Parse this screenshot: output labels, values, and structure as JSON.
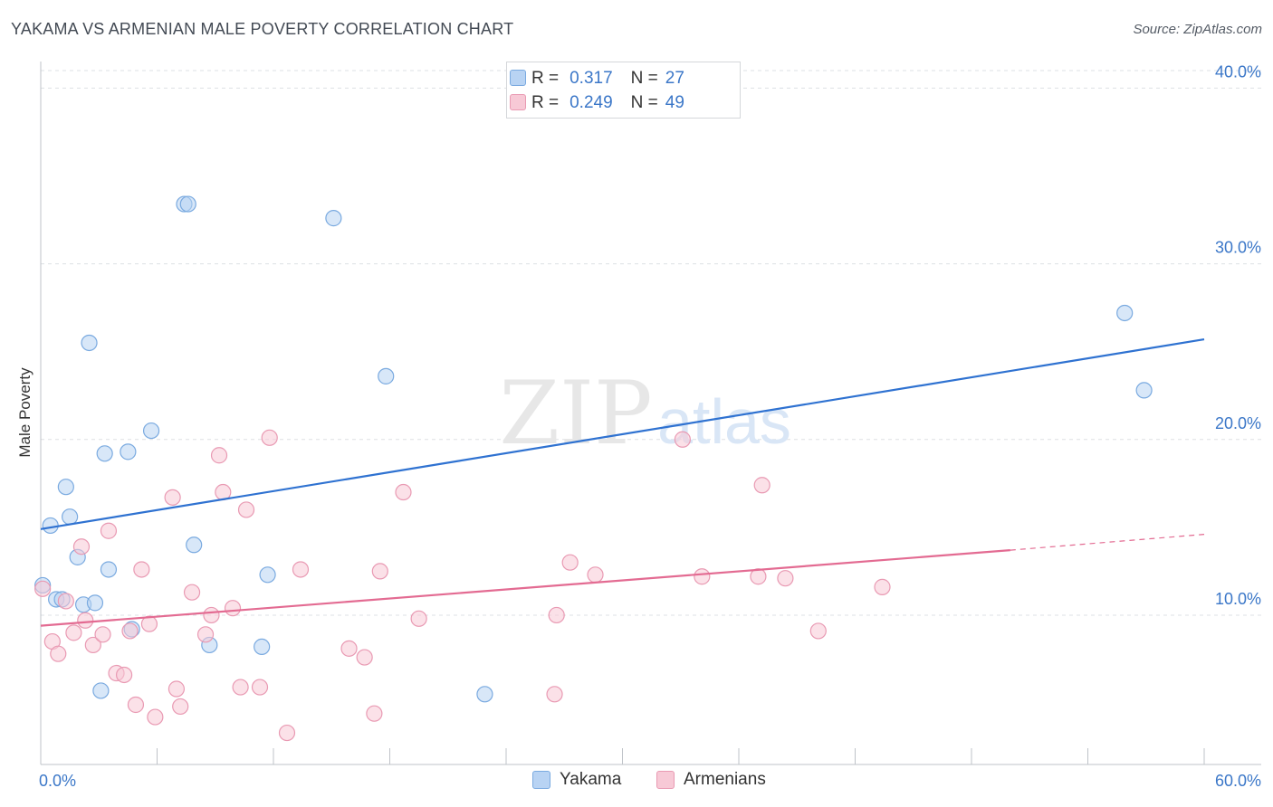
{
  "title": "YAKAMA VS ARMENIAN MALE POVERTY CORRELATION CHART",
  "source": "Source: ZipAtlas.com",
  "watermark": {
    "zip": "ZIP",
    "atlas": "atlas"
  },
  "colors": {
    "yakama_fill": "#b8d3f3",
    "yakama_stroke": "#7aaae0",
    "yakama_line": "#2f72d1",
    "armenian_fill": "#f7c9d6",
    "armenian_stroke": "#e99ab3",
    "armenian_line": "#e36b92",
    "tick_label": "#3b77c8",
    "grid": "#dde0e4"
  },
  "legend": {
    "rows": [
      {
        "r_label": "R =",
        "r_value": "0.317",
        "n_label": "N =",
        "n_value": "27"
      },
      {
        "r_label": "R =",
        "r_value": "0.249",
        "n_label": "N =",
        "n_value": "49"
      }
    ]
  },
  "chart_data": {
    "type": "scatter",
    "title": "YAKAMA VS ARMENIAN MALE POVERTY CORRELATION CHART",
    "xlabel": "",
    "ylabel": "Male Poverty",
    "xlim": [
      0,
      60
    ],
    "ylim": [
      1.5,
      41
    ],
    "x_tick_labels": [
      "0.0%",
      "60.0%"
    ],
    "y_ticks": [
      10,
      20,
      30,
      40
    ],
    "y_tick_labels": [
      "10.0%",
      "20.0%",
      "30.0%",
      "40.0%"
    ],
    "grid": true,
    "legend_position": "top-center",
    "series": [
      {
        "name": "Yakama",
        "points": [
          [
            0.1,
            11.7
          ],
          [
            0.5,
            15.1
          ],
          [
            0.8,
            10.9
          ],
          [
            1.1,
            10.9
          ],
          [
            1.3,
            17.3
          ],
          [
            1.5,
            15.6
          ],
          [
            1.9,
            13.3
          ],
          [
            2.2,
            10.6
          ],
          [
            2.5,
            25.5
          ],
          [
            2.8,
            10.7
          ],
          [
            3.1,
            5.7
          ],
          [
            3.3,
            19.2
          ],
          [
            3.5,
            12.6
          ],
          [
            4.5,
            19.3
          ],
          [
            4.7,
            9.2
          ],
          [
            5.7,
            20.5
          ],
          [
            7.4,
            33.4
          ],
          [
            7.6,
            33.4
          ],
          [
            7.9,
            14.0
          ],
          [
            8.7,
            8.3
          ],
          [
            11.4,
            8.2
          ],
          [
            11.7,
            12.3
          ],
          [
            15.1,
            32.6
          ],
          [
            17.8,
            23.6
          ],
          [
            22.9,
            5.5
          ],
          [
            55.9,
            27.2
          ],
          [
            56.9,
            22.8
          ]
        ],
        "trend": {
          "x1": 0,
          "y1": 14.9,
          "x2": 60,
          "y2": 25.7
        }
      },
      {
        "name": "Armenians",
        "points": [
          [
            0.1,
            11.5
          ],
          [
            0.6,
            8.5
          ],
          [
            0.9,
            7.8
          ],
          [
            1.3,
            10.8
          ],
          [
            1.7,
            9.0
          ],
          [
            2.1,
            13.9
          ],
          [
            2.3,
            9.7
          ],
          [
            2.7,
            8.3
          ],
          [
            3.2,
            8.9
          ],
          [
            3.5,
            14.8
          ],
          [
            3.9,
            6.7
          ],
          [
            4.3,
            6.6
          ],
          [
            4.6,
            9.1
          ],
          [
            4.9,
            4.9
          ],
          [
            5.2,
            12.6
          ],
          [
            5.6,
            9.5
          ],
          [
            5.9,
            4.2
          ],
          [
            6.8,
            16.7
          ],
          [
            7.0,
            5.8
          ],
          [
            7.2,
            4.8
          ],
          [
            7.8,
            11.3
          ],
          [
            8.5,
            8.9
          ],
          [
            8.8,
            10.0
          ],
          [
            9.2,
            19.1
          ],
          [
            9.4,
            17.0
          ],
          [
            9.9,
            10.4
          ],
          [
            10.3,
            5.9
          ],
          [
            10.6,
            16.0
          ],
          [
            11.3,
            5.9
          ],
          [
            11.8,
            20.1
          ],
          [
            12.7,
            3.3
          ],
          [
            13.4,
            12.6
          ],
          [
            15.9,
            8.1
          ],
          [
            16.7,
            7.6
          ],
          [
            17.2,
            4.4
          ],
          [
            17.5,
            12.5
          ],
          [
            18.7,
            17.0
          ],
          [
            19.5,
            9.8
          ],
          [
            26.5,
            5.5
          ],
          [
            26.6,
            10.0
          ],
          [
            27.3,
            13.0
          ],
          [
            28.6,
            12.3
          ],
          [
            33.1,
            20.0
          ],
          [
            34.1,
            12.2
          ],
          [
            37.0,
            12.2
          ],
          [
            37.2,
            17.4
          ],
          [
            38.4,
            12.1
          ],
          [
            40.1,
            9.1
          ],
          [
            43.4,
            11.6
          ]
        ],
        "trend": {
          "x1": 0,
          "y1": 9.4,
          "x2": 50,
          "y2": 13.7
        },
        "trend_dashed": {
          "x1": 50,
          "y1": 13.7,
          "x2": 60,
          "y2": 14.6
        }
      }
    ]
  },
  "bottom_legend": [
    {
      "label": "Yakama"
    },
    {
      "label": "Armenians"
    }
  ]
}
